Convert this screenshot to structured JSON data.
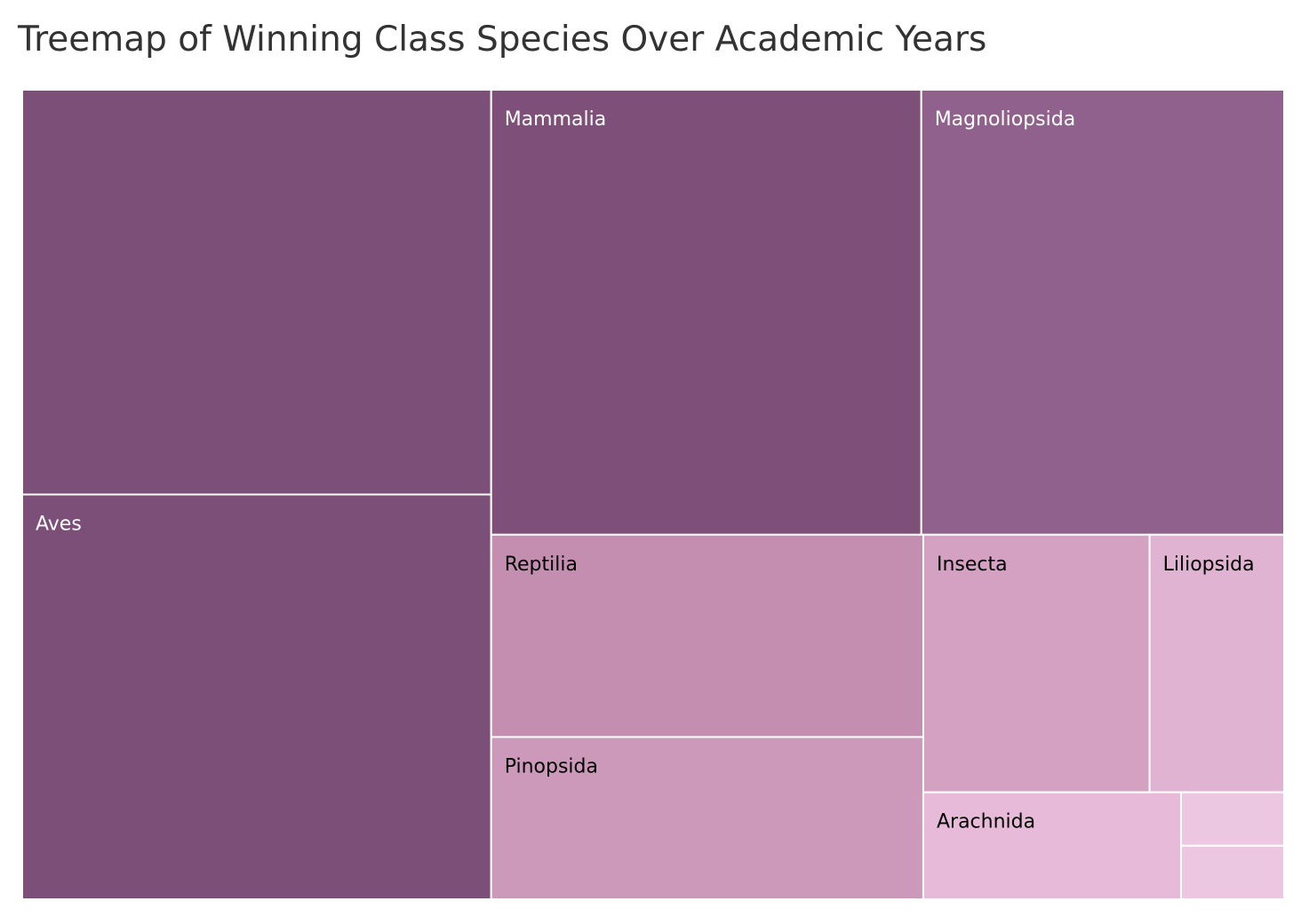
{
  "chart_data": {
    "type": "treemap",
    "title": "Treemap of Winning Class Species Over Academic Years",
    "categories": [
      "",
      "Aves",
      "Mammalia",
      "Magnoliopsida",
      "Reptilia",
      "Pinopsida",
      "Insecta",
      "Liliopsida",
      "Arachnida",
      "",
      ""
    ],
    "values": [
      241,
      241,
      243,
      205,
      111,
      89,
      74,
      44,
      35,
      7,
      7
    ],
    "colors": [
      "#7c4f78",
      "#7c4f78",
      "#7d4f79",
      "#8f618c",
      "#c48eb1",
      "#cc99bb",
      "#d4a1c3",
      "#e0b3d2",
      "#e8bad9",
      "#ecc7e2",
      "#ecc7e2"
    ],
    "label_colors": [
      "#ffffff",
      "#ffffff",
      "#ffffff",
      "#ffffff",
      "#000000",
      "#000000",
      "#000000",
      "#000000",
      "#000000",
      "#000000",
      "#000000"
    ]
  }
}
